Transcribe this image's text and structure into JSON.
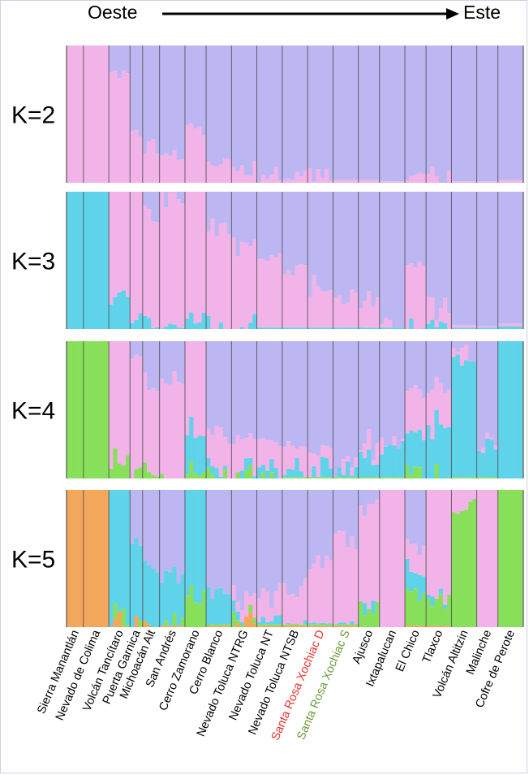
{
  "header": {
    "west_label": "Oeste",
    "east_label": "Este"
  },
  "chart_data": {
    "type": "bar",
    "stacked": true,
    "normalized": true,
    "ylim": [
      0,
      1
    ],
    "colors": {
      "pink": "#f2b3e8",
      "lavender": "#bcb7f2",
      "cyan": "#5fd3ea",
      "green": "#88e05a",
      "orange": "#f2a75a",
      "separator": "#555555"
    },
    "populations": [
      {
        "name": "Sierra Manantlán",
        "n": 4,
        "label_color": "#000000"
      },
      {
        "name": "Nevado de Colima",
        "n": 6,
        "label_color": "#000000"
      },
      {
        "name": "Volcán Tancítaro",
        "n": 5,
        "label_color": "#000000"
      },
      {
        "name": "Puerta Garnica",
        "n": 3,
        "label_color": "#000000"
      },
      {
        "name": "Michoacán Alt",
        "n": 4,
        "label_color": "#000000"
      },
      {
        "name": "San Andrés",
        "n": 6,
        "label_color": "#000000"
      },
      {
        "name": "Cerro Zamorano",
        "n": 5,
        "label_color": "#000000"
      },
      {
        "name": "Cerro Blanco",
        "n": 6,
        "label_color": "#000000"
      },
      {
        "name": "Nevado Toluca NTRG",
        "n": 6,
        "label_color": "#000000"
      },
      {
        "name": "Nevado Toluca NT",
        "n": 6,
        "label_color": "#000000"
      },
      {
        "name": "Nevado Toluca NTSB",
        "n": 6,
        "label_color": "#000000"
      },
      {
        "name": "Santa Rosa Xochiac D",
        "n": 6,
        "label_color": "#e8302a"
      },
      {
        "name": "Santa Rosa Xochiac S",
        "n": 6,
        "label_color": "#6a9a3a"
      },
      {
        "name": "Ajusco",
        "n": 5,
        "label_color": "#000000"
      },
      {
        "name": "Ixtapalucan",
        "n": 6,
        "label_color": "#000000"
      },
      {
        "name": "El Chico",
        "n": 5,
        "label_color": "#000000"
      },
      {
        "name": "Tlaxco",
        "n": 6,
        "label_color": "#000000"
      },
      {
        "name": "Volcán Altitzin",
        "n": 6,
        "label_color": "#000000"
      },
      {
        "name": "Malinche",
        "n": 5,
        "label_color": "#000000"
      },
      {
        "name": "Cofre de Perote",
        "n": 6,
        "label_color": "#000000"
      }
    ],
    "panels": [
      {
        "label": "K=2",
        "clusters": [
          "pink",
          "lavender"
        ],
        "order": [
          "pink",
          "lavender"
        ],
        "pops": [
          [
            [
              1,
              0
            ]
          ],
          [
            [
              1,
              0
            ]
          ],
          [
            [
              0.8,
              0.2
            ]
          ],
          [
            [
              0.35,
              0.65
            ]
          ],
          [
            [
              0.28,
              0.72
            ]
          ],
          [
            [
              0.22,
              0.78
            ]
          ],
          [
            [
              0.42,
              0.58
            ]
          ],
          [
            [
              0.12,
              0.88
            ]
          ],
          [
            [
              0.1,
              0.9
            ]
          ],
          [
            [
              0.07,
              0.93
            ]
          ],
          [
            [
              0.05,
              0.95
            ]
          ],
          [
            [
              0.03,
              0.97
            ]
          ],
          [
            [
              0.02,
              0.98
            ]
          ],
          [
            [
              0.02,
              0.98
            ]
          ],
          [
            [
              0.01,
              0.99
            ]
          ],
          [
            [
              0.1,
              0.9
            ]
          ],
          [
            [
              0.04,
              0.96
            ]
          ],
          [
            [
              0.01,
              0.99
            ]
          ],
          [
            [
              0.01,
              0.99
            ]
          ],
          [
            [
              0.02,
              0.98
            ]
          ]
        ]
      },
      {
        "label": "K=3",
        "clusters": [
          "cyan",
          "pink",
          "lavender"
        ],
        "order": [
          "cyan",
          "pink",
          "lavender"
        ],
        "pops": [
          [
            [
              1,
              0,
              0
            ]
          ],
          [
            [
              1,
              0,
              0
            ]
          ],
          [
            [
              0.25,
              0.75,
              0
            ]
          ],
          [
            [
              0.03,
              0.97,
              0
            ]
          ],
          [
            [
              0.03,
              0.8,
              0.17
            ]
          ],
          [
            [
              0.02,
              0.9,
              0.08
            ]
          ],
          [
            [
              0.1,
              0.9,
              0
            ]
          ],
          [
            [
              0.03,
              0.7,
              0.27
            ]
          ],
          [
            [
              0.02,
              0.58,
              0.4
            ]
          ],
          [
            [
              0.01,
              0.5,
              0.49
            ]
          ],
          [
            [
              0.01,
              0.42,
              0.57
            ]
          ],
          [
            [
              0.01,
              0.3,
              0.69
            ]
          ],
          [
            [
              0.01,
              0.22,
              0.77
            ]
          ],
          [
            [
              0.01,
              0.2,
              0.79
            ]
          ],
          [
            [
              0.01,
              0.03,
              0.96
            ]
          ],
          [
            [
              0.03,
              0.45,
              0.52
            ]
          ],
          [
            [
              0.02,
              0.12,
              0.86
            ]
          ],
          [
            [
              0.01,
              0.02,
              0.97
            ]
          ],
          [
            [
              0.01,
              0.01,
              0.98
            ]
          ],
          [
            [
              0.02,
              0.02,
              0.96
            ]
          ]
        ]
      },
      {
        "label": "K=4",
        "clusters": [
          "green",
          "cyan",
          "pink",
          "lavender"
        ],
        "order": [
          "green",
          "cyan",
          "pink",
          "lavender"
        ],
        "pops": [
          [
            [
              1,
              0,
              0,
              0
            ]
          ],
          [
            [
              1,
              0,
              0,
              0
            ]
          ],
          [
            [
              0.15,
              0,
              0.85,
              0
            ]
          ],
          [
            [
              0.03,
              0,
              0.82,
              0.15
            ]
          ],
          [
            [
              0.05,
              0,
              0.65,
              0.3
            ]
          ],
          [
            [
              0.02,
              0,
              0.72,
              0.26
            ]
          ],
          [
            [
              0.05,
              0.3,
              0.65,
              0
            ]
          ],
          [
            [
              0.02,
              0.02,
              0.3,
              0.66
            ]
          ],
          [
            [
              0.02,
              0.02,
              0.2,
              0.76
            ]
          ],
          [
            [
              0.02,
              0.02,
              0.18,
              0.78
            ]
          ],
          [
            [
              0.01,
              0.05,
              0.15,
              0.79
            ]
          ],
          [
            [
              0.01,
              0.07,
              0.1,
              0.82
            ]
          ],
          [
            [
              0.01,
              0.08,
              0.05,
              0.86
            ]
          ],
          [
            [
              0.01,
              0.15,
              0.07,
              0.77
            ]
          ],
          [
            [
              0.01,
              0.2,
              0.05,
              0.74
            ]
          ],
          [
            [
              0.02,
              0.3,
              0.28,
              0.4
            ]
          ],
          [
            [
              0.02,
              0.35,
              0.3,
              0.33
            ]
          ],
          [
            [
              0.01,
              0.85,
              0.05,
              0.09
            ]
          ],
          [
            [
              0.01,
              0.25,
              0.05,
              0.69
            ]
          ],
          [
            [
              0,
              1,
              0,
              0
            ]
          ]
        ]
      },
      {
        "label": "K=5",
        "clusters": [
          "orange",
          "green",
          "cyan",
          "pink",
          "lavender"
        ],
        "order": [
          "orange",
          "green",
          "cyan",
          "pink",
          "lavender"
        ],
        "pops": [
          [
            [
              1,
              0,
              0,
              0,
              0
            ]
          ],
          [
            [
              1,
              0,
              0,
              0,
              0
            ]
          ],
          [
            [
              0.05,
              0.05,
              0.9,
              0,
              0
            ]
          ],
          [
            [
              0.02,
              0.02,
              0.56,
              0,
              0.4
            ]
          ],
          [
            [
              0.02,
              0.02,
              0.4,
              0,
              0.56
            ]
          ],
          [
            [
              0.01,
              0.02,
              0.35,
              0,
              0.62
            ]
          ],
          [
            [
              0,
              0.25,
              0.75,
              0,
              0
            ]
          ],
          [
            [
              0.01,
              0.01,
              0.25,
              0,
              0.73
            ]
          ],
          [
            [
              0.03,
              0.05,
              0.02,
              0.1,
              0.8
            ]
          ],
          [
            [
              0.01,
              0.01,
              0.1,
              0.15,
              0.73
            ]
          ],
          [
            [
              0.01,
              0.01,
              0.02,
              0.25,
              0.71
            ]
          ],
          [
            [
              0.01,
              0.01,
              0.01,
              0.45,
              0.52
            ]
          ],
          [
            [
              0.01,
              0.01,
              0.02,
              0.6,
              0.36
            ]
          ],
          [
            [
              0,
              0.12,
              0.05,
              0.7,
              0.13
            ]
          ],
          [
            [
              0,
              0,
              0,
              1,
              0
            ]
          ],
          [
            [
              0.01,
              0.2,
              0.15,
              0.2,
              0.44
            ]
          ],
          [
            [
              0.01,
              0.2,
              0.05,
              0.74,
              0
            ]
          ],
          [
            [
              0,
              0.85,
              0,
              0.15,
              0
            ]
          ],
          [
            [
              0,
              0,
              0,
              1,
              0
            ]
          ],
          [
            [
              0,
              1,
              0,
              0,
              0
            ]
          ]
        ]
      }
    ]
  }
}
